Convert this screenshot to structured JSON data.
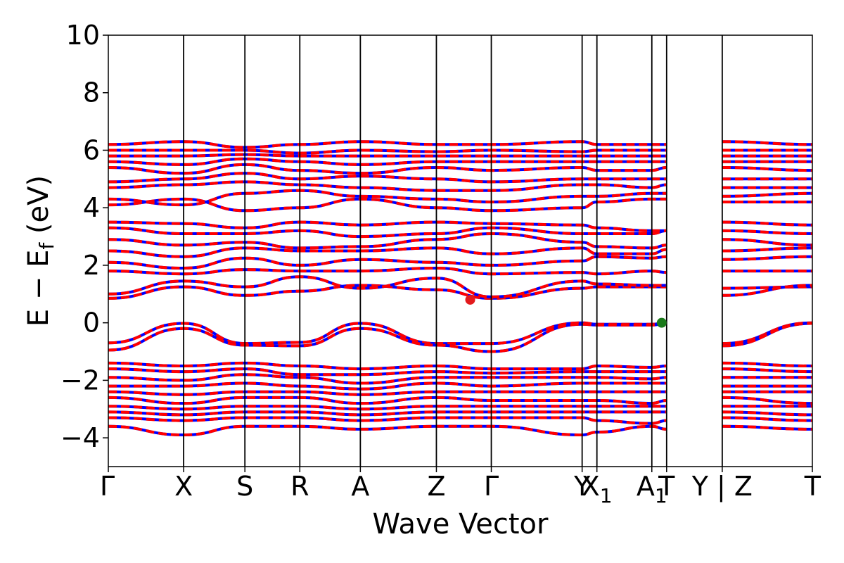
{
  "chart_data": {
    "type": "line",
    "xlabel": "Wave Vector",
    "ylabel": "E − E",
    "ylabel_subscript": "f",
    "ylabel_unit": " (eV)",
    "ylim": [
      -5,
      10
    ],
    "yticks": [
      {
        "value": 10,
        "label": "10"
      },
      {
        "value": 8,
        "label": "8"
      },
      {
        "value": 6,
        "label": "6"
      },
      {
        "value": 4,
        "label": "4"
      },
      {
        "value": 2,
        "label": "2"
      },
      {
        "value": 0,
        "label": "0"
      },
      {
        "value": -2,
        "label": "−2"
      },
      {
        "value": -4,
        "label": "−4"
      }
    ],
    "kpoints": [
      {
        "k": 0.0,
        "label": "Γ"
      },
      {
        "k": 0.107,
        "label": "X"
      },
      {
        "k": 0.194,
        "label": "S"
      },
      {
        "k": 0.272,
        "label": "R"
      },
      {
        "k": 0.358,
        "label": "A"
      },
      {
        "k": 0.466,
        "label": "Z"
      },
      {
        "k": 0.544,
        "label": "Γ"
      },
      {
        "k": 0.673,
        "label": "Y"
      },
      {
        "k": 0.694,
        "label": "X",
        "sub": "1"
      },
      {
        "k": 0.772,
        "label": "A",
        "sub": "1"
      },
      {
        "k": 0.793,
        "label": "T"
      },
      {
        "k": 0.872,
        "label": "Y | Z"
      },
      {
        "k": 1.0,
        "label": "T"
      }
    ],
    "gap_segment": [
      0.793,
      0.872
    ],
    "conduction_bands": [
      [
        0.85,
        1.25,
        0.95,
        1.1,
        1.3,
        1.15,
        0.85,
        1.2,
        1.25,
        1.25,
        1.25,
        1.2,
        1.25
      ],
      [
        1.0,
        1.45,
        1.25,
        1.6,
        1.2,
        1.55,
        0.9,
        1.45,
        1.35,
        1.3,
        1.3,
        0.95,
        1.3
      ],
      [
        1.8,
        1.7,
        1.85,
        1.8,
        1.8,
        1.9,
        1.7,
        1.75,
        1.7,
        1.8,
        1.75,
        1.8,
        1.8
      ],
      [
        2.1,
        1.9,
        2.25,
        2.0,
        2.2,
        2.1,
        2.0,
        2.15,
        2.3,
        2.25,
        2.3,
        2.2,
        2.3
      ],
      [
        2.5,
        2.3,
        2.6,
        2.5,
        2.5,
        2.6,
        2.4,
        2.6,
        2.4,
        2.4,
        2.55,
        2.5,
        2.6
      ],
      [
        2.9,
        2.7,
        2.8,
        2.6,
        2.65,
        2.9,
        3.1,
        2.8,
        2.65,
        2.6,
        2.7,
        2.9,
        2.7
      ],
      [
        3.3,
        3.1,
        3.1,
        3.2,
        3.0,
        3.1,
        3.3,
        3.1,
        3.1,
        3.1,
        3.2,
        3.2,
        3.1
      ],
      [
        3.5,
        3.45,
        3.3,
        3.5,
        3.4,
        3.5,
        3.45,
        3.4,
        3.3,
        3.2,
        3.2,
        3.5,
        3.4
      ],
      [
        4.1,
        4.3,
        3.9,
        4.0,
        4.3,
        4.0,
        3.9,
        4.0,
        4.2,
        4.3,
        4.3,
        4.2,
        4.2
      ],
      [
        4.3,
        4.1,
        4.5,
        4.6,
        4.4,
        4.3,
        4.2,
        4.4,
        4.4,
        4.5,
        4.5,
        4.4,
        4.5
      ],
      [
        4.7,
        4.8,
        4.9,
        4.8,
        4.7,
        4.6,
        4.6,
        4.8,
        4.8,
        4.7,
        4.8,
        4.7,
        4.7
      ],
      [
        4.9,
        5.0,
        5.2,
        5.0,
        5.1,
        5.0,
        4.9,
        5.0,
        5.0,
        5.0,
        5.0,
        5.0,
        5.0
      ],
      [
        5.4,
        5.2,
        5.5,
        5.3,
        5.2,
        5.4,
        5.3,
        5.4,
        5.3,
        5.3,
        5.4,
        5.4,
        5.3
      ],
      [
        5.6,
        5.5,
        5.7,
        5.6,
        5.5,
        5.6,
        5.6,
        5.6,
        5.6,
        5.6,
        5.6,
        5.6,
        5.6
      ],
      [
        5.8,
        5.8,
        5.85,
        5.8,
        5.8,
        5.8,
        5.8,
        5.8,
        5.8,
        5.8,
        5.8,
        5.8,
        5.8
      ],
      [
        6.0,
        6.0,
        6.0,
        5.9,
        6.0,
        5.95,
        6.0,
        5.95,
        6.0,
        6.0,
        6.0,
        6.0,
        6.0
      ],
      [
        6.2,
        6.3,
        6.1,
        6.2,
        6.3,
        6.2,
        6.2,
        6.3,
        6.2,
        6.2,
        6.2,
        6.3,
        6.2
      ]
    ],
    "valence_bands": [
      [
        -0.7,
        -0.02,
        -0.72,
        -0.68,
        -0.02,
        -0.72,
        -0.72,
        0.0,
        -0.05,
        -0.05,
        0.0,
        -0.72,
        0.0
      ],
      [
        -0.95,
        -0.2,
        -0.78,
        -0.8,
        -0.2,
        -0.78,
        -1.0,
        -0.05,
        -0.08,
        -0.08,
        -0.02,
        -0.8,
        -0.02
      ],
      [
        -1.4,
        -1.5,
        -1.4,
        -1.5,
        -1.6,
        -1.5,
        -1.6,
        -1.6,
        -1.5,
        -1.55,
        -1.5,
        -1.4,
        -1.5
      ],
      [
        -1.6,
        -1.7,
        -1.6,
        -1.8,
        -1.8,
        -1.7,
        -1.75,
        -1.7,
        -1.7,
        -1.7,
        -1.7,
        -1.6,
        -1.7
      ],
      [
        -1.9,
        -2.0,
        -1.8,
        -1.9,
        -2.1,
        -1.9,
        -1.9,
        -1.9,
        -1.9,
        -1.95,
        -1.9,
        -1.9,
        -1.9
      ],
      [
        -2.2,
        -2.2,
        -2.1,
        -2.2,
        -2.3,
        -2.1,
        -2.2,
        -2.1,
        -2.1,
        -2.1,
        -2.1,
        -2.2,
        -2.2
      ],
      [
        -2.4,
        -2.5,
        -2.4,
        -2.4,
        -2.5,
        -2.4,
        -2.4,
        -2.4,
        -2.4,
        -2.4,
        -2.4,
        -2.4,
        -2.4
      ],
      [
        -2.6,
        -2.8,
        -2.6,
        -2.6,
        -2.8,
        -2.6,
        -2.7,
        -2.7,
        -2.7,
        -2.8,
        -2.7,
        -2.6,
        -2.8
      ],
      [
        -2.9,
        -3.0,
        -2.9,
        -2.9,
        -3.0,
        -2.9,
        -2.9,
        -2.9,
        -2.9,
        -2.9,
        -2.9,
        -2.9,
        -2.9
      ],
      [
        -3.1,
        -3.2,
        -3.1,
        -3.1,
        -3.2,
        -3.1,
        -3.1,
        -3.1,
        -3.1,
        -3.1,
        -3.1,
        -3.1,
        -3.2
      ],
      [
        -3.3,
        -3.4,
        -3.3,
        -3.3,
        -3.4,
        -3.3,
        -3.3,
        -3.3,
        -3.4,
        -3.5,
        -3.4,
        -3.3,
        -3.4
      ],
      [
        -3.6,
        -3.9,
        -3.6,
        -3.6,
        -3.7,
        -3.6,
        -3.6,
        -3.9,
        -3.8,
        -3.6,
        -3.7,
        -3.6,
        -3.7
      ]
    ],
    "markers": [
      {
        "k": 0.514,
        "e": 0.8,
        "color": "#e31a1c"
      },
      {
        "k": 0.786,
        "e": 0.0,
        "color": "#1a7a1a"
      }
    ],
    "colors": {
      "band_red": "#ff0000",
      "band_blue": "#0000ff",
      "axis": "#000000"
    }
  }
}
